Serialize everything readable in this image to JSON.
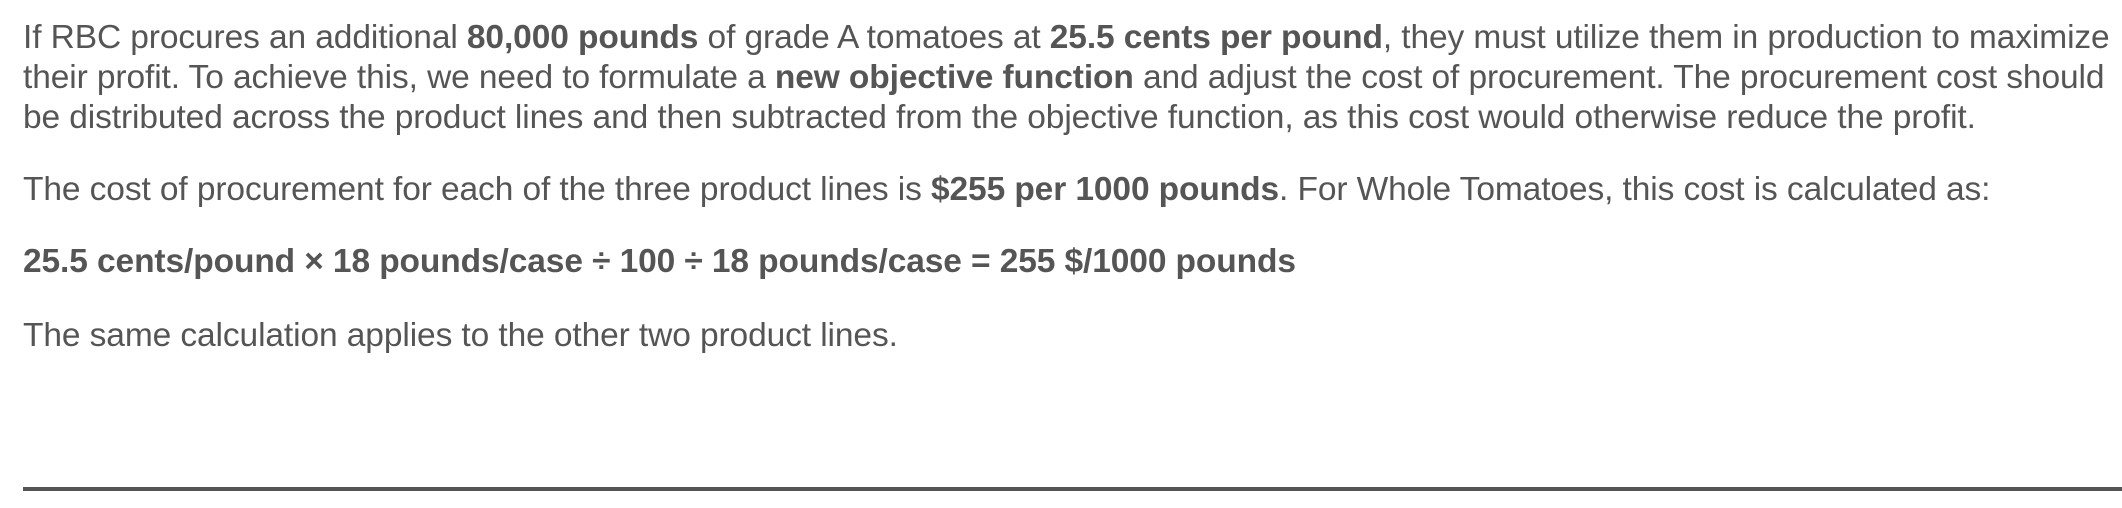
{
  "paragraph1": {
    "t1": "If RBC procures an additional ",
    "b1": "80,000 pounds",
    "t2": " of grade A tomatoes at ",
    "b2": "25.5 cents per pound",
    "t3": ", they must utilize them in production to maximize their profit. To achieve this, we need to formulate a ",
    "b3": "new objective function",
    "t4": " and adjust the cost of procurement. The procurement cost should be distributed across the product lines and then subtracted from the objective function, as this cost would otherwise reduce the profit."
  },
  "paragraph2": {
    "t1": "The cost of procurement for each of the three product lines is ",
    "b1": "$255 per 1000 pounds",
    "t2": ". For Whole Tomatoes, this cost is calculated as:"
  },
  "formula": "25.5 cents/pound × 18 pounds/case ÷ 100 ÷ 18 pounds/case = 255 $/1000 pounds",
  "paragraph4": "The same calculation applies to the other two product lines."
}
